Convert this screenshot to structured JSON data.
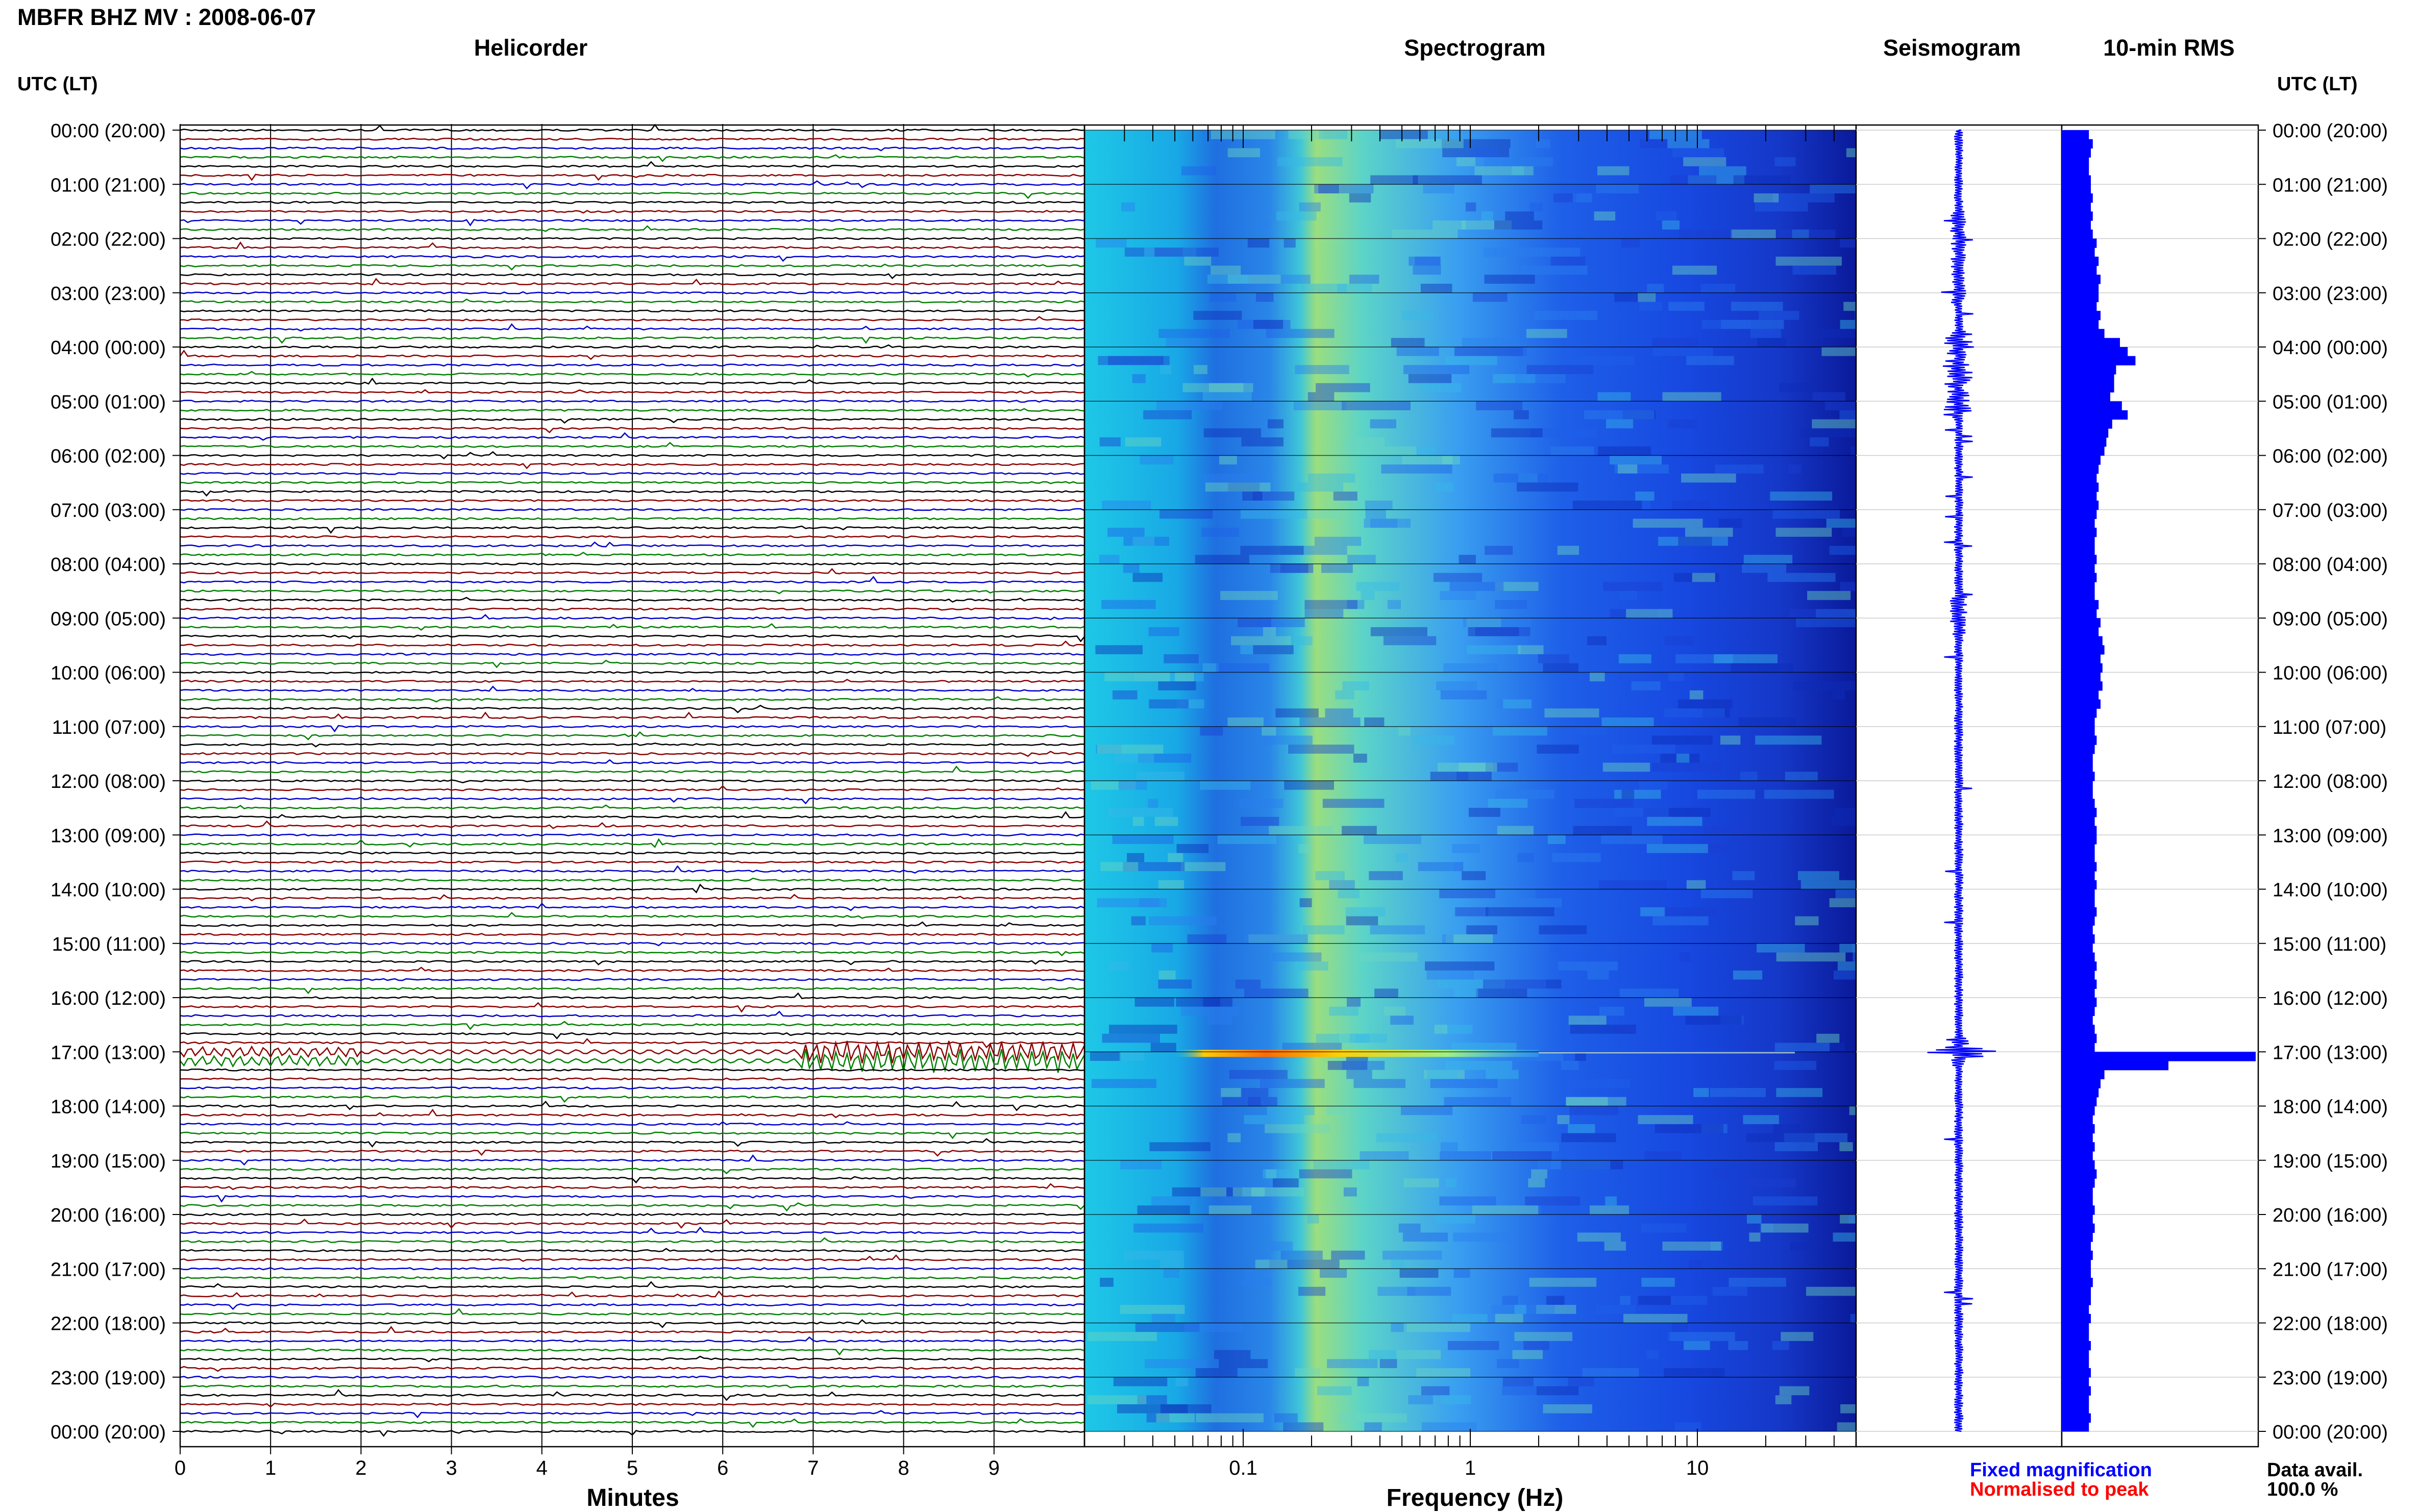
{
  "header": {
    "title": "MBFR BHZ MV : 2008-06-07"
  },
  "colors": {
    "trace_colors": [
      "#000000",
      "#8b0000",
      "#0000cd",
      "#008000"
    ],
    "fixed_color": "#0000ff",
    "normalised_color": "#ff0000",
    "axis": "#000000",
    "rms_fill": "#0000ff"
  },
  "panels": {
    "helicorder": "Helicorder",
    "spectrogram": "Spectrogram",
    "seismogram": "Seismogram",
    "rms": "10-min RMS"
  },
  "axes": {
    "left_time_header": "UTC (LT)",
    "right_time_header": "UTC (LT)",
    "minutes_label": "Minutes",
    "frequency_label": "Frequency (Hz)"
  },
  "legend": {
    "fixed": "Fixed magnification",
    "normalised": "Normalised to peak",
    "data_avail_label": "Data avail.",
    "data_avail_value": "100.0 %"
  },
  "chart_data": [
    {
      "type": "line",
      "name": "helicorder",
      "xlabel": "Minutes",
      "xlim": [
        0,
        10
      ],
      "x_ticks": [
        "0",
        "1",
        "2",
        "3",
        "4",
        "5",
        "6",
        "7",
        "8",
        "9"
      ],
      "y_tick_labels": [
        "00:00 (20:00)",
        "01:00 (21:00)",
        "02:00 (22:00)",
        "03:00 (23:00)",
        "04:00 (00:00)",
        "05:00 (01:00)",
        "06:00 (02:00)",
        "07:00 (03:00)",
        "08:00 (04:00)",
        "09:00 (05:00)",
        "10:00 (06:00)",
        "11:00 (07:00)",
        "12:00 (08:00)",
        "13:00 (09:00)",
        "14:00 (10:00)",
        "15:00 (11:00)",
        "16:00 (12:00)",
        "17:00 (13:00)",
        "18:00 (14:00)",
        "19:00 (15:00)",
        "20:00 (16:00)",
        "21:00 (17:00)",
        "22:00 (18:00)",
        "23:00 (19:00)",
        "00:00 (20:00)"
      ],
      "lines_per_hour": 6,
      "notable_event": {
        "time": "17:00",
        "minutes": [
          7,
          10
        ]
      }
    },
    {
      "type": "heatmap",
      "name": "spectrogram",
      "xlabel": "Frequency (Hz)",
      "x_scale": "log",
      "xlim": [
        0.02,
        50
      ],
      "x_ticks": [
        "0.1",
        "1",
        "10"
      ],
      "notable_event": {
        "time": "17:00",
        "freq_range": [
          0.05,
          2
        ]
      }
    },
    {
      "type": "line",
      "name": "seismogram",
      "notable_event": {
        "time": "17:00"
      }
    },
    {
      "type": "bar",
      "name": "10-min RMS",
      "orientation": "horizontal",
      "xlim": [
        0,
        1
      ],
      "values": [
        0.14,
        0.16,
        0.15,
        0.14,
        0.14,
        0.15,
        0.15,
        0.16,
        0.15,
        0.16,
        0.15,
        0.16,
        0.18,
        0.17,
        0.19,
        0.18,
        0.2,
        0.19,
        0.19,
        0.18,
        0.2,
        0.19,
        0.22,
        0.3,
        0.34,
        0.38,
        0.28,
        0.27,
        0.27,
        0.25,
        0.31,
        0.34,
        0.26,
        0.24,
        0.23,
        0.22,
        0.2,
        0.19,
        0.18,
        0.19,
        0.18,
        0.19,
        0.18,
        0.17,
        0.18,
        0.17,
        0.17,
        0.18,
        0.17,
        0.18,
        0.17,
        0.17,
        0.19,
        0.18,
        0.2,
        0.19,
        0.21,
        0.22,
        0.2,
        0.21,
        0.2,
        0.21,
        0.19,
        0.2,
        0.18,
        0.17,
        0.17,
        0.18,
        0.17,
        0.16,
        0.16,
        0.17,
        0.16,
        0.16,
        0.17,
        0.18,
        0.17,
        0.18,
        0.18,
        0.17,
        0.17,
        0.18,
        0.17,
        0.18,
        0.17,
        0.17,
        0.18,
        0.17,
        0.16,
        0.17,
        0.16,
        0.17,
        0.18,
        0.17,
        0.18,
        0.17,
        0.18,
        0.17,
        0.16,
        0.17,
        0.18,
        0.17,
        1.0,
        0.55,
        0.22,
        0.2,
        0.19,
        0.18,
        0.17,
        0.16,
        0.17,
        0.16,
        0.17,
        0.16,
        0.17,
        0.18,
        0.17,
        0.16,
        0.16,
        0.17,
        0.16,
        0.17,
        0.16,
        0.15,
        0.16,
        0.15,
        0.15,
        0.16,
        0.15,
        0.15,
        0.14,
        0.15,
        0.14,
        0.14,
        0.15,
        0.14,
        0.14,
        0.15,
        0.14,
        0.15,
        0.14,
        0.14,
        0.15,
        0.14
      ]
    }
  ]
}
